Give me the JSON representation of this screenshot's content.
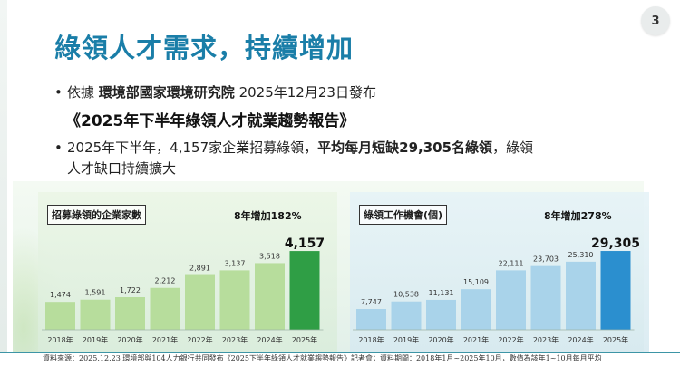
{
  "page_number": "3",
  "title": "綠領人才需求，持續增加",
  "bullet1": {
    "prefix": "依據",
    "org": "環境部國家環境研究院",
    "date_text": "2025年12月23日發布"
  },
  "report_title": "《2025年下半年綠領人才就業趨勢報告》",
  "bullet2": {
    "part1": "2025年下半年，4,157家企業招募綠領，",
    "part2": "平均每月短缺29,305名綠領",
    "part3": "，綠領",
    "line2": "人才缺口持續擴大"
  },
  "source_note": "資料來源：2025.12.23 環境部與104人力銀行共同發布《2025下半年綠領人才就業趨勢報告》記者會；資料期間：2018年1月~2025年10月，數值為該年1~10月每月平均",
  "colors": {
    "title": "#1a7ea8",
    "green_bar": "#b7dd9c",
    "green_highlight": "#2f9e45",
    "blue_bar": "#a9d3ea",
    "blue_highlight": "#2b8fcf"
  },
  "chart_data": [
    {
      "type": "bar",
      "title": "招募綠領的企業家數",
      "annotation": "8年增加182%",
      "categories": [
        "2018年",
        "2019年",
        "2020年",
        "2021年",
        "2022年",
        "2023年",
        "2024年",
        "2025年"
      ],
      "values": [
        1474,
        1591,
        1722,
        2212,
        2891,
        3137,
        3518,
        4157
      ],
      "value_labels": [
        "1,474",
        "1,591",
        "1,722",
        "2,212",
        "2,891",
        "3,137",
        "3,518",
        "4,157"
      ],
      "highlight_last": true,
      "ylim": [
        0,
        4400
      ]
    },
    {
      "type": "bar",
      "title": "綠領工作機會(個)",
      "annotation": "8年增加278%",
      "categories": [
        "2018年",
        "2019年",
        "2020年",
        "2021年",
        "2022年",
        "2023年",
        "2024年",
        "2025年"
      ],
      "values": [
        7747,
        10538,
        11131,
        15109,
        22111,
        23703,
        25310,
        29305
      ],
      "value_labels": [
        "7,747",
        "10,538",
        "11,131",
        "15,109",
        "22,111",
        "23,703",
        "25,310",
        "29,305"
      ],
      "highlight_last": true,
      "ylim": [
        0,
        31000
      ]
    }
  ]
}
